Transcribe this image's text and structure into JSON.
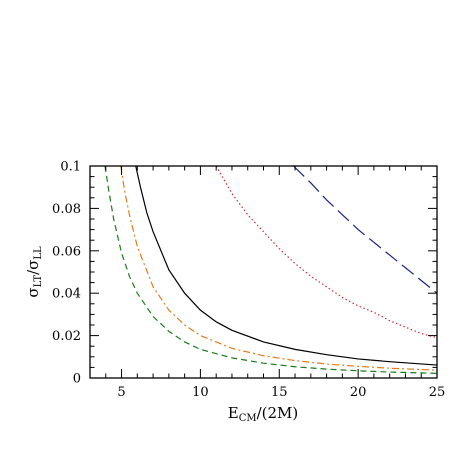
{
  "chart_data": {
    "type": "line",
    "xlabel": "E",
    "xlabel_sub": "CM",
    "xlabel_suffix": "/(2M)",
    "ylabel_parts": [
      "σ",
      "LT",
      "/σ",
      "LL"
    ],
    "xlim": [
      3,
      25
    ],
    "ylim": [
      0,
      0.1
    ],
    "x_ticks": [
      5,
      10,
      15,
      20,
      25
    ],
    "x_tick_labels": [
      "5",
      "10",
      "15",
      "20",
      "25"
    ],
    "y_ticks": [
      0,
      0.02,
      0.04,
      0.06,
      0.08,
      0.1
    ],
    "y_tick_labels": [
      "0",
      "0.02",
      "0.04",
      "0.06",
      "0.08",
      "0.1"
    ],
    "grid": false,
    "legend": "none",
    "series": [
      {
        "color": "#1a7a1a",
        "style": "short-dash",
        "x": [
          3.95,
          4.2,
          4.5,
          5,
          5.5,
          6,
          7,
          8,
          9,
          10,
          12,
          14,
          16,
          18,
          20,
          22,
          25
        ],
        "y": [
          0.1,
          0.088,
          0.075,
          0.059,
          0.048,
          0.04,
          0.029,
          0.022,
          0.017,
          0.0135,
          0.0095,
          0.007,
          0.0053,
          0.0042,
          0.0034,
          0.0028,
          0.0022
        ]
      },
      {
        "color": "#e07b20",
        "style": "dash-dot",
        "x": [
          4.95,
          5.2,
          5.5,
          6,
          7,
          8,
          9,
          10,
          12,
          14,
          16,
          18,
          20,
          22,
          25
        ],
        "y": [
          0.1,
          0.088,
          0.077,
          0.062,
          0.043,
          0.032,
          0.025,
          0.02,
          0.014,
          0.0105,
          0.0082,
          0.0066,
          0.0055,
          0.0046,
          0.0037
        ]
      },
      {
        "color": "#000000",
        "style": "solid",
        "x": [
          5.9,
          6.2,
          6.6,
          7,
          8,
          9,
          10,
          11,
          12,
          14,
          16,
          18,
          20,
          22,
          25
        ],
        "y": [
          0.1,
          0.09,
          0.078,
          0.069,
          0.051,
          0.04,
          0.032,
          0.0265,
          0.0225,
          0.017,
          0.0135,
          0.011,
          0.009,
          0.0077,
          0.0061
        ]
      },
      {
        "color": "#cc2a3a",
        "style": "dotted",
        "x": [
          11,
          12,
          13,
          14,
          15,
          16,
          17,
          18,
          19,
          20,
          21,
          22,
          23,
          24,
          25
        ],
        "y": [
          0.1,
          0.087,
          0.077,
          0.069,
          0.061,
          0.054,
          0.048,
          0.043,
          0.038,
          0.034,
          0.031,
          0.027,
          0.024,
          0.021,
          0.019
        ]
      },
      {
        "color": "#1a237e",
        "style": "long-dash",
        "x": [
          15.9,
          17,
          18,
          19,
          20,
          21,
          22,
          23,
          24,
          25
        ],
        "y": [
          0.1,
          0.092,
          0.084,
          0.077,
          0.07,
          0.064,
          0.058,
          0.052,
          0.046,
          0.04
        ]
      }
    ]
  }
}
